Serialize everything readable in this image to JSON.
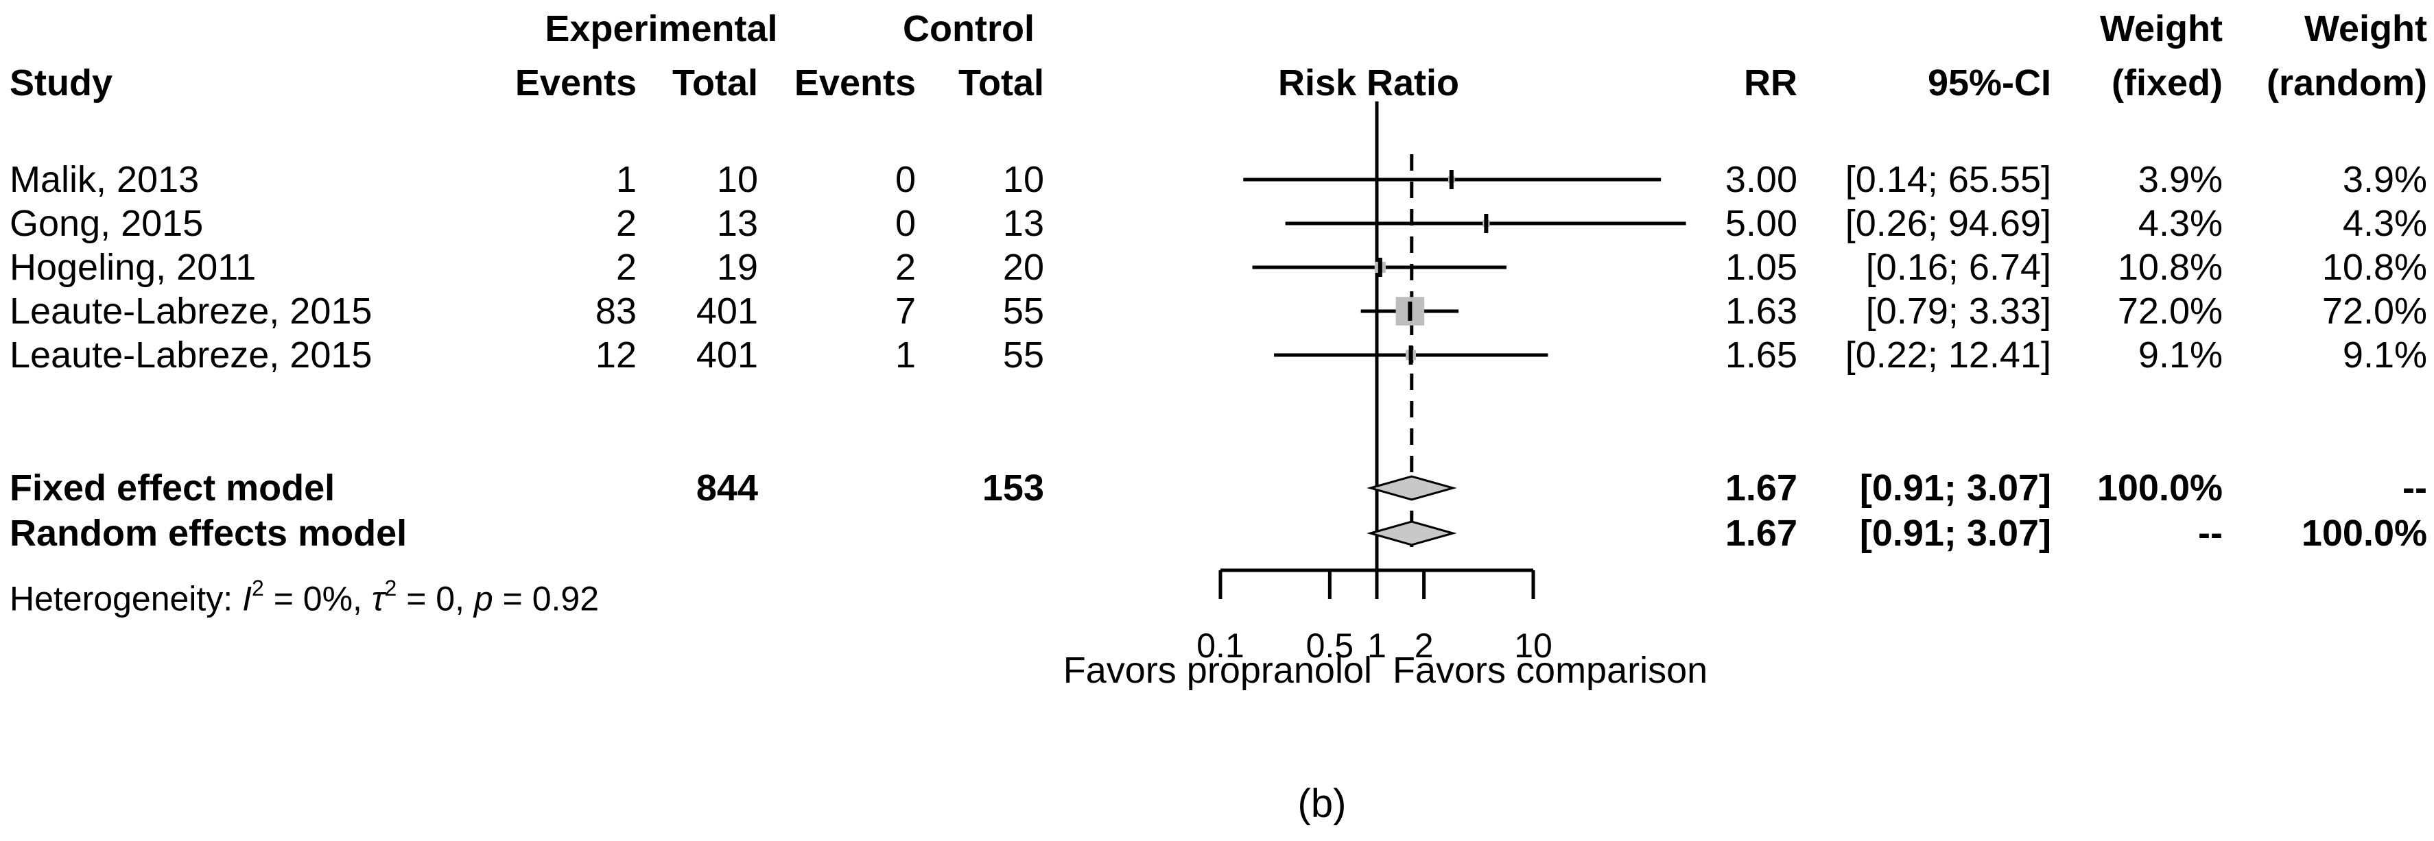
{
  "caption": "(b)",
  "header": {
    "study": "Study",
    "experimental": "Experimental",
    "control": "Control",
    "events": "Events",
    "total": "Total",
    "risk_ratio": "Risk Ratio",
    "rr": "RR",
    "ci": "95%-CI",
    "weight": "Weight",
    "weight_fixed_sub": "(fixed)",
    "weight_random_sub": "(random)"
  },
  "chart_data": {
    "type": "scatter",
    "chart_kind": "forest-plot",
    "axis": {
      "scale": "log10",
      "min": 0.1,
      "max": 10,
      "tick_values": [
        0.1,
        0.5,
        1,
        2,
        10
      ],
      "tick_labels": [
        "0.1",
        "0.5",
        "1",
        "2",
        "10"
      ]
    },
    "reference_value": 1,
    "pooled_value": 1.67,
    "favors_left": "Favors propranolol",
    "favors_right": "Favors comparison",
    "studies": [
      {
        "name": "Malik, 2013",
        "exp_events": "1",
        "exp_total": "10",
        "ctrl_events": "0",
        "ctrl_total": "10",
        "rr": 3.0,
        "ci_lo": 0.14,
        "ci_hi": 65.55,
        "rr_text": "3.00",
        "ci_text": "[0.14; 65.55]",
        "weight_fixed": "3.9%",
        "weight_random": "3.9%",
        "weight_pct": 3.9
      },
      {
        "name": "Gong, 2015",
        "exp_events": "2",
        "exp_total": "13",
        "ctrl_events": "0",
        "ctrl_total": "13",
        "rr": 5.0,
        "ci_lo": 0.26,
        "ci_hi": 94.69,
        "rr_text": "5.00",
        "ci_text": "[0.26; 94.69]",
        "weight_fixed": "4.3%",
        "weight_random": "4.3%",
        "weight_pct": 4.3
      },
      {
        "name": "Hogeling, 2011",
        "exp_events": "2",
        "exp_total": "19",
        "ctrl_events": "2",
        "ctrl_total": "20",
        "rr": 1.05,
        "ci_lo": 0.16,
        "ci_hi": 6.74,
        "rr_text": "1.05",
        "ci_text": "[0.16; 6.74]",
        "weight_fixed": "10.8%",
        "weight_random": "10.8%",
        "weight_pct": 10.8
      },
      {
        "name": "Leaute-Labreze, 2015",
        "exp_events": "83",
        "exp_total": "401",
        "ctrl_events": "7",
        "ctrl_total": "55",
        "rr": 1.63,
        "ci_lo": 0.79,
        "ci_hi": 3.33,
        "rr_text": "1.63",
        "ci_text": "[0.79; 3.33]",
        "weight_fixed": "72.0%",
        "weight_random": "72.0%",
        "weight_pct": 72.0
      },
      {
        "name": "Leaute-Labreze, 2015",
        "exp_events": "12",
        "exp_total": "401",
        "ctrl_events": "1",
        "ctrl_total": "55",
        "rr": 1.65,
        "ci_lo": 0.22,
        "ci_hi": 12.41,
        "rr_text": "1.65",
        "ci_text": "[0.22; 12.41]",
        "weight_fixed": "9.1%",
        "weight_random": "9.1%",
        "weight_pct": 9.1
      }
    ],
    "fixed_model": {
      "label": "Fixed effect model",
      "exp_total": "844",
      "ctrl_total": "153",
      "rr": 1.67,
      "ci_lo": 0.91,
      "ci_hi": 3.07,
      "rr_text": "1.67",
      "ci_text": "[0.91; 3.07]",
      "weight_fixed": "100.0%",
      "weight_random": "--"
    },
    "random_model": {
      "label": "Random effects model",
      "rr": 1.67,
      "ci_lo": 0.91,
      "ci_hi": 3.07,
      "rr_text": "1.67",
      "ci_text": "[0.91; 3.07]",
      "weight_fixed": "--",
      "weight_random": "100.0%"
    },
    "heterogeneity": {
      "prefix": "Heterogeneity: ",
      "i_symbol": "I",
      "i_exp": "2",
      "i_value": " = 0%, ",
      "tau_symbol": "τ",
      "tau_exp": "2",
      "tau_value": " = 0, ",
      "p_symbol": "p",
      "p_value": " = 0.92"
    }
  },
  "colors": {
    "text": "#000000",
    "line": "#000000",
    "marker_fill": "#bdbdbd",
    "diamond_fill": "#c8c8c8",
    "background": "#ffffff"
  }
}
